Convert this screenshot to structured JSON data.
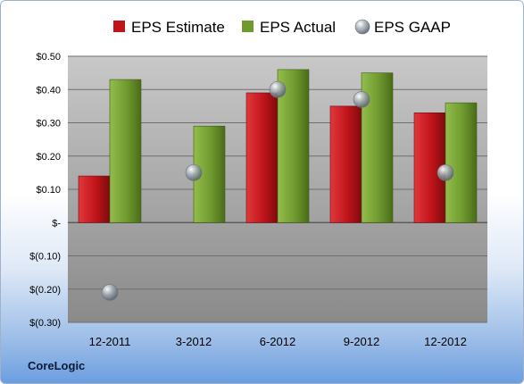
{
  "company": "CoreLogic",
  "colors": {
    "eps_estimate": "#c0141a",
    "eps_actual": "#6f9a2e",
    "eps_gaap": "#9aa3ad",
    "plot_bg_top": "#c8c8c8",
    "plot_bg_bottom": "#8a8a8a"
  },
  "legend": [
    {
      "label": "EPS Estimate",
      "icon": "red-square-icon"
    },
    {
      "label": "EPS Actual",
      "icon": "green-square-icon"
    },
    {
      "label": "EPS GAAP",
      "icon": "gray-sphere-icon"
    }
  ],
  "chart_data": {
    "type": "bar",
    "categories": [
      "12-2011",
      "3-2012",
      "6-2012",
      "9-2012",
      "12-2012"
    ],
    "series": [
      {
        "name": "EPS Estimate",
        "kind": "bar",
        "values": [
          0.14,
          null,
          0.39,
          0.35,
          0.33
        ]
      },
      {
        "name": "EPS Actual",
        "kind": "bar",
        "values": [
          0.43,
          0.29,
          0.46,
          0.45,
          0.36
        ]
      },
      {
        "name": "EPS GAAP",
        "kind": "scatter",
        "values": [
          -0.21,
          0.15,
          0.4,
          0.37,
          0.15
        ]
      }
    ],
    "ylim": [
      -0.3,
      0.5
    ],
    "yticks": [
      0.5,
      0.4,
      0.3,
      0.2,
      0.1,
      0.0,
      -0.1,
      -0.2,
      -0.3
    ],
    "ytick_labels": [
      "$0.50",
      "$0.40",
      "$0.30",
      "$0.20",
      "$0.10",
      "$-",
      "$(0.10)",
      "$(0.20)",
      "$(0.30)"
    ],
    "grid": true,
    "legend_position": "top"
  }
}
